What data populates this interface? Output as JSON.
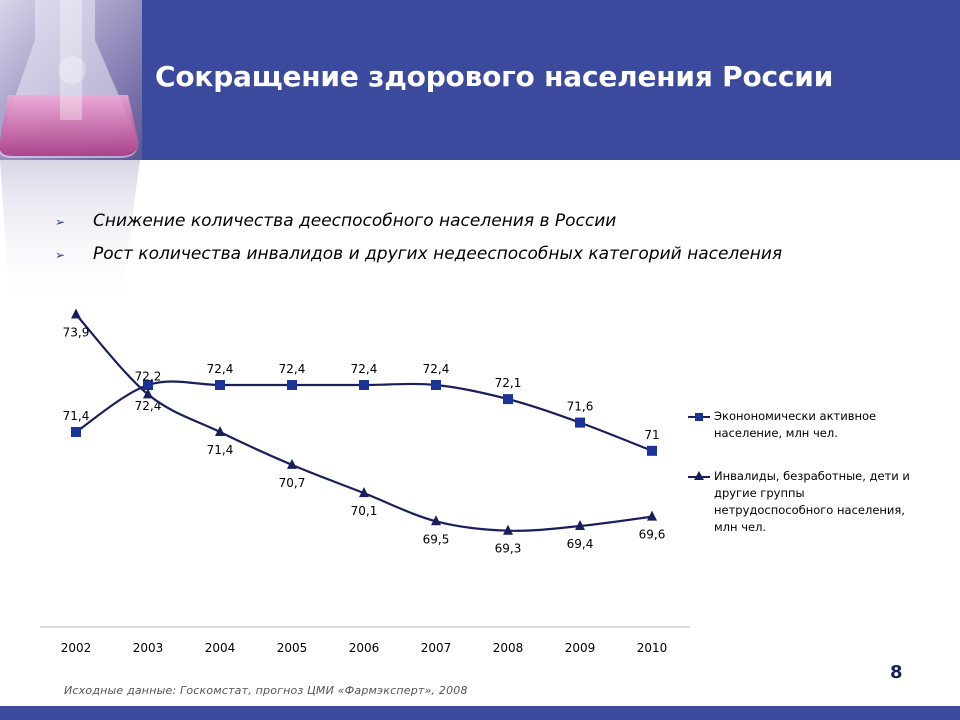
{
  "slide": {
    "title": "Сокращение здорового населения России",
    "bullets": [
      "Снижение количества дееспособного населения в России",
      "Рост количества инвалидов и других недееспособных категорий населения"
    ],
    "page_number": "8",
    "source_note": "Исходные данные: Госкомстат, прогноз ЦМИ «Фармэксперт», 2008"
  },
  "colors": {
    "header": "#3b4a9c",
    "series_active": "#1a3399",
    "series_disabled": "#1a1f5c"
  },
  "chart_data": {
    "type": "line",
    "categories": [
      "2002",
      "2003",
      "2004",
      "2005",
      "2006",
      "2007",
      "2008",
      "2009",
      "2010"
    ],
    "series": [
      {
        "name": "Экономически активное население, млн чел.",
        "display_name": "Эконономически активное\nнаселение, млн чел.",
        "marker": "square",
        "values": [
          71.4,
          72.4,
          72.4,
          72.4,
          72.4,
          72.4,
          72.1,
          71.6,
          71.0
        ],
        "labels": [
          "71,4",
          "72,4",
          "72,4",
          "72,4",
          "72,4",
          "72,4",
          "72,1",
          "71,6",
          "71"
        ]
      },
      {
        "name": "Инвалиды, безработные, дети и другие группы нетрудоспособного населения, млн чел.",
        "display_name": "Инвалиды, безработные, дети и\nдругие группы\nнетрудоспособного населения,\nмлн чел.",
        "marker": "triangle",
        "values": [
          73.9,
          72.2,
          71.4,
          70.7,
          70.1,
          69.5,
          69.3,
          69.4,
          69.6
        ],
        "labels": [
          "73,9",
          "72,2",
          "71,4",
          "70,7",
          "70,1",
          "69,5",
          "69,3",
          "69,4",
          "69,6"
        ]
      }
    ],
    "legend": "right",
    "grid": false
  }
}
